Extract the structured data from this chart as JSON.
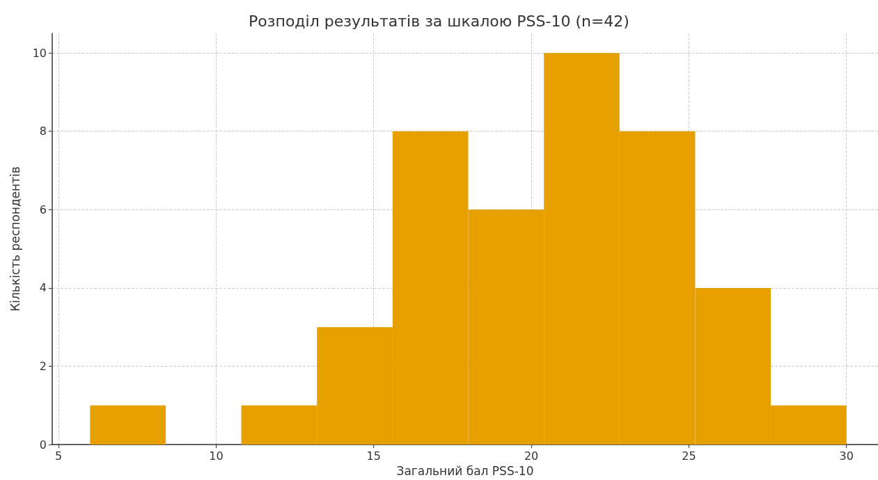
{
  "chart_data": {
    "type": "histogram",
    "title": "Розподіл результатів за шкалою PSS-10 (n=42)",
    "xlabel": "Загальний бал PSS-10",
    "ylabel": "Кількість респондентів",
    "bins": [
      6,
      8.4,
      10.8,
      13.2,
      15.6,
      18,
      20.4,
      22.8,
      25.2,
      27.6,
      30
    ],
    "values": [
      1,
      0,
      1,
      3,
      8,
      6,
      10,
      8,
      4,
      1
    ],
    "color": "#e5a000",
    "xlim": [
      4.8,
      31
    ],
    "ylim": [
      0,
      10.5
    ],
    "xticks": [
      5,
      10,
      15,
      20,
      25,
      30
    ],
    "yticks": [
      0,
      2,
      4,
      6,
      8,
      10
    ],
    "grid": true
  }
}
